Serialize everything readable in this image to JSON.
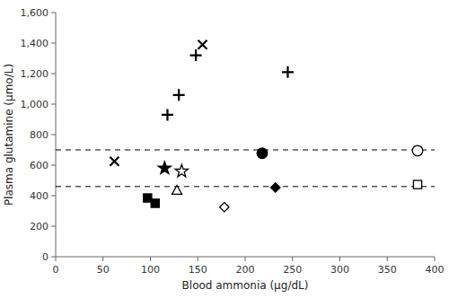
{
  "chart_data": {
    "type": "scatter",
    "xlabel": "Blood ammonia (μg/dL)",
    "ylabel": "Plasma glutamine (μmo/L)",
    "xlim": [
      0,
      400
    ],
    "ylim": [
      0,
      1600
    ],
    "xticks": [
      0,
      50,
      100,
      150,
      200,
      250,
      300,
      350,
      400
    ],
    "yticks": [
      0,
      200,
      400,
      600,
      800,
      {
        "value": 1000,
        "label": "1,000"
      },
      {
        "value": 1200,
        "label": "1,200"
      },
      {
        "value": 1400,
        "label": "1,400"
      },
      {
        "value": 1600,
        "label": "1,600"
      }
    ],
    "hlines": [
      700,
      460
    ],
    "series": [
      {
        "marker": "x",
        "color": "#000000",
        "x": [
          62,
          155
        ],
        "values": [
          625,
          1390
        ]
      },
      {
        "marker": "plus",
        "color": "#000000",
        "x": [
          118,
          130,
          148,
          245
        ],
        "values": [
          930,
          1060,
          1320,
          1210
        ]
      },
      {
        "marker": "star",
        "color": "#000000",
        "x": [
          115
        ],
        "values": [
          580
        ]
      },
      {
        "marker": "star",
        "color": "#ffffff",
        "x": [
          133
        ],
        "values": [
          560
        ]
      },
      {
        "marker": "square",
        "color": "#000000",
        "x": [
          97,
          105
        ],
        "values": [
          385,
          350
        ]
      },
      {
        "marker": "triangle",
        "color": "#ffffff",
        "x": [
          128
        ],
        "values": [
          435
        ]
      },
      {
        "marker": "diamond",
        "color": "#ffffff",
        "x": [
          178
        ],
        "values": [
          325
        ]
      },
      {
        "marker": "circle",
        "color": "#000000",
        "x": [
          218
        ],
        "values": [
          678
        ]
      },
      {
        "marker": "diamond",
        "color": "#000000",
        "x": [
          232
        ],
        "values": [
          453
        ]
      },
      {
        "marker": "circle",
        "color": "#ffffff",
        "x": [
          382
        ],
        "values": [
          695
        ]
      },
      {
        "marker": "square",
        "color": "#ffffff",
        "x": [
          382
        ],
        "values": [
          473
        ]
      }
    ]
  }
}
